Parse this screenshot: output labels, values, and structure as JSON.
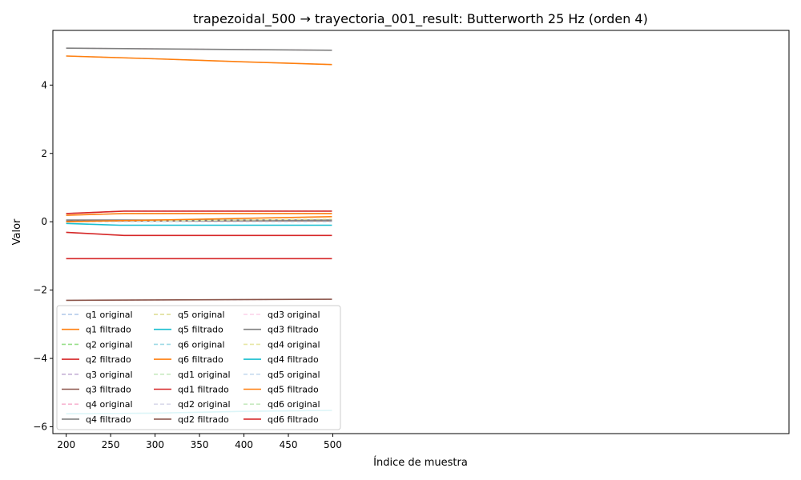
{
  "chart_data": {
    "type": "line",
    "title": "trapezoidal_500 → trayectoria_001_result: Butterworth 25 Hz (orden 4)",
    "xlabel": "Índice de muestra",
    "ylabel": "Valor",
    "xlim": [
      185,
      1013.3
    ],
    "ylim": [
      -6.2,
      5.6
    ],
    "xticks": [
      200,
      250,
      300,
      350,
      400,
      450,
      500
    ],
    "yticks": [
      -6,
      -4,
      -2,
      0,
      2,
      4
    ],
    "ytick_labels": [
      "−6",
      "−4",
      "−2",
      "0",
      "2",
      "4"
    ],
    "grid": false,
    "legend_placement": "lower-left",
    "legend_columns": 3,
    "series": [
      {
        "name": "q1 original",
        "style": "dashed",
        "color": "#aec7e8",
        "x": [
          200,
          300,
          400,
          499
        ],
        "y": [
          4.85,
          4.77,
          4.68,
          4.6
        ]
      },
      {
        "name": "q1 filtrado",
        "style": "solid",
        "color": "#ff7f0e",
        "x": [
          200,
          300,
          400,
          499
        ],
        "y": [
          4.85,
          4.77,
          4.68,
          4.6
        ]
      },
      {
        "name": "q2 original",
        "style": "dashed",
        "color": "#98df8a",
        "x": [
          200,
          265,
          400,
          499
        ],
        "y": [
          0.24,
          0.31,
          0.31,
          0.31
        ]
      },
      {
        "name": "q2 filtrado",
        "style": "solid",
        "color": "#d62728",
        "x": [
          200,
          265,
          400,
          499
        ],
        "y": [
          0.24,
          0.31,
          0.31,
          0.31
        ]
      },
      {
        "name": "q3 original",
        "style": "dashed",
        "color": "#c5b0d5",
        "x": [
          200,
          499
        ],
        "y": [
          -2.3,
          -2.27
        ]
      },
      {
        "name": "q3 filtrado",
        "style": "solid",
        "color": "#8c564b",
        "x": [
          200,
          499
        ],
        "y": [
          -2.3,
          -2.27
        ]
      },
      {
        "name": "q4 original",
        "style": "dashed",
        "color": "#f7b6d2",
        "x": [
          200,
          499
        ],
        "y": [
          5.08,
          5.02
        ]
      },
      {
        "name": "q4 filtrado",
        "style": "solid",
        "color": "#7f7f7f",
        "x": [
          200,
          499
        ],
        "y": [
          5.08,
          5.02
        ]
      },
      {
        "name": "q5 original",
        "style": "dashed",
        "color": "#dbdb8d",
        "x": [
          200,
          300,
          400,
          499
        ],
        "y": [
          -5.62,
          -5.6,
          -5.55,
          -5.52
        ]
      },
      {
        "name": "q5 filtrado",
        "style": "solid",
        "color": "#17becf",
        "x": [
          200,
          300,
          400,
          499
        ],
        "y": [
          -5.62,
          -5.6,
          -5.55,
          -5.52
        ]
      },
      {
        "name": "q6 original",
        "style": "dashed",
        "color": "#9edae5",
        "x": [
          200,
          265,
          400,
          499
        ],
        "y": [
          0.19,
          0.24,
          0.24,
          0.24
        ]
      },
      {
        "name": "q6 filtrado",
        "style": "solid",
        "color": "#ff7f0e",
        "x": [
          200,
          265,
          400,
          499
        ],
        "y": [
          0.19,
          0.24,
          0.24,
          0.24
        ]
      },
      {
        "name": "qd1 original",
        "style": "dashed",
        "color": "#c7e9c0",
        "x": [
          200,
          265,
          400,
          499
        ],
        "y": [
          -0.31,
          -0.4,
          -0.4,
          -0.4
        ]
      },
      {
        "name": "qd1 filtrado",
        "style": "solid",
        "color": "#d62728",
        "x": [
          200,
          265,
          400,
          499
        ],
        "y": [
          -0.31,
          -0.4,
          -0.4,
          -0.4
        ]
      },
      {
        "name": "qd2 original",
        "style": "dashed",
        "color": "#dadaeb",
        "x": [
          200,
          499
        ],
        "y": [
          0.02,
          0.03
        ]
      },
      {
        "name": "qd2 filtrado",
        "style": "solid",
        "color": "#8c564b",
        "x": [
          200,
          499
        ],
        "y": [
          0.02,
          0.03
        ]
      },
      {
        "name": "qd3 original",
        "style": "dashed",
        "color": "#fbd0e8",
        "x": [
          200,
          499
        ],
        "y": [
          0.05,
          0.05
        ]
      },
      {
        "name": "qd3 filtrado",
        "style": "solid",
        "color": "#7f7f7f",
        "x": [
          200,
          499
        ],
        "y": [
          0.05,
          0.05
        ]
      },
      {
        "name": "qd4 original",
        "style": "dashed",
        "color": "#e7e7a5",
        "x": [
          200,
          499
        ],
        "y": [
          0.0,
          0.08
        ]
      },
      {
        "name": "qd4 filtrado",
        "style": "solid",
        "color": "#17becf",
        "x": [
          200,
          260,
          400,
          499
        ],
        "y": [
          -0.05,
          -0.1,
          -0.1,
          -0.1
        ]
      },
      {
        "name": "qd5 original",
        "style": "dashed",
        "color": "#c6dbef",
        "x": [
          200,
          499
        ],
        "y": [
          0.0,
          0.0
        ]
      },
      {
        "name": "qd5 filtrado",
        "style": "solid",
        "color": "#ff7f0e",
        "x": [
          200,
          499
        ],
        "y": [
          0.0,
          0.15
        ]
      },
      {
        "name": "qd6 original",
        "style": "dashed",
        "color": "#c7e9c0",
        "x": [
          200,
          499
        ],
        "y": [
          -1.08,
          -1.08
        ]
      },
      {
        "name": "qd6 filtrado",
        "style": "solid",
        "color": "#d62728",
        "x": [
          200,
          499
        ],
        "y": [
          -1.08,
          -1.08
        ]
      }
    ]
  }
}
